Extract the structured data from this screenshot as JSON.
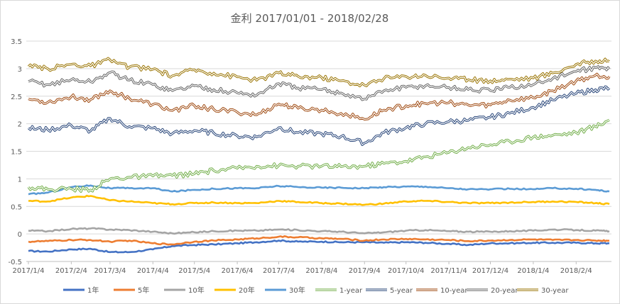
{
  "chart_data": {
    "type": "line",
    "title": "金利 2017/01/01 - 2018/02/28",
    "xlabel": "",
    "ylabel": "",
    "ylim": [
      -0.5,
      3.5
    ],
    "yticks": [
      "-0.5",
      "0",
      "0.5",
      "1",
      "1.5",
      "2",
      "2.5",
      "3",
      "3.5"
    ],
    "xticks": [
      "2017/1/4",
      "2017/2/4",
      "2017/3/4",
      "2017/4/4",
      "2017/5/4",
      "2017/6/4",
      "2017/7/4",
      "2017/8/4",
      "2017/9/4",
      "2017/10/4",
      "2017/11/4",
      "2017/12/4",
      "2018/1/4",
      "2018/2/4"
    ],
    "x": [
      "2017/1/4",
      "2017/1/18",
      "2017/2/4",
      "2017/2/18",
      "2017/3/4",
      "2017/3/18",
      "2017/4/4",
      "2017/4/18",
      "2017/5/4",
      "2017/5/18",
      "2017/6/4",
      "2017/6/18",
      "2017/7/4",
      "2017/7/18",
      "2017/8/4",
      "2017/8/18",
      "2017/9/4",
      "2017/9/18",
      "2017/10/4",
      "2017/10/18",
      "2017/11/4",
      "2017/11/18",
      "2017/12/4",
      "2017/12/18",
      "2018/1/4",
      "2018/1/18",
      "2018/2/4",
      "2018/2/18",
      "2018/2/28"
    ],
    "grid": true,
    "legend_position": "bottom",
    "series": [
      {
        "name": "1年",
        "style": "thick",
        "color": "#4472c4",
        "values": [
          -0.31,
          -0.32,
          -0.28,
          -0.27,
          -0.33,
          -0.33,
          -0.28,
          -0.22,
          -0.2,
          -0.19,
          -0.17,
          -0.15,
          -0.12,
          -0.14,
          -0.14,
          -0.15,
          -0.15,
          -0.16,
          -0.15,
          -0.16,
          -0.18,
          -0.2,
          -0.17,
          -0.17,
          -0.16,
          -0.16,
          -0.16,
          -0.17,
          -0.17
        ]
      },
      {
        "name": "5年",
        "style": "thick",
        "color": "#ed7d31",
        "values": [
          -0.14,
          -0.13,
          -0.11,
          -0.11,
          -0.14,
          -0.12,
          -0.17,
          -0.19,
          -0.14,
          -0.12,
          -0.1,
          -0.08,
          -0.05,
          -0.06,
          -0.08,
          -0.09,
          -0.12,
          -0.1,
          -0.09,
          -0.1,
          -0.11,
          -0.13,
          -0.12,
          -0.11,
          -0.1,
          -0.11,
          -0.11,
          -0.12,
          -0.12
        ]
      },
      {
        "name": "10年",
        "style": "thick",
        "color": "#a5a5a5",
        "values": [
          0.06,
          0.05,
          0.09,
          0.1,
          0.08,
          0.07,
          0.04,
          0.01,
          0.03,
          0.05,
          0.06,
          0.06,
          0.08,
          0.07,
          0.05,
          0.04,
          0.01,
          0.03,
          0.06,
          0.07,
          0.05,
          0.04,
          0.04,
          0.05,
          0.06,
          0.08,
          0.07,
          0.06,
          0.05
        ]
      },
      {
        "name": "20年",
        "style": "thick",
        "color": "#ffc000",
        "values": [
          0.6,
          0.59,
          0.66,
          0.69,
          0.61,
          0.59,
          0.56,
          0.54,
          0.56,
          0.57,
          0.56,
          0.56,
          0.6,
          0.58,
          0.56,
          0.55,
          0.53,
          0.55,
          0.59,
          0.6,
          0.58,
          0.56,
          0.56,
          0.57,
          0.58,
          0.59,
          0.58,
          0.56,
          0.54
        ]
      },
      {
        "name": "30年",
        "style": "thick",
        "color": "#5b9bd5",
        "values": [
          0.72,
          0.75,
          0.85,
          0.88,
          0.83,
          0.83,
          0.83,
          0.77,
          0.8,
          0.82,
          0.83,
          0.83,
          0.87,
          0.85,
          0.84,
          0.84,
          0.83,
          0.85,
          0.86,
          0.86,
          0.83,
          0.81,
          0.81,
          0.82,
          0.81,
          0.83,
          0.82,
          0.8,
          0.77
        ]
      },
      {
        "name": "1-year",
        "style": "outline",
        "color": "#70ad47",
        "values": [
          0.85,
          0.81,
          0.82,
          0.8,
          1.0,
          1.03,
          1.05,
          1.06,
          1.09,
          1.15,
          1.19,
          1.23,
          1.24,
          1.23,
          1.23,
          1.22,
          1.23,
          1.28,
          1.32,
          1.4,
          1.48,
          1.57,
          1.62,
          1.68,
          1.76,
          1.79,
          1.84,
          1.95,
          2.07
        ]
      },
      {
        "name": "5-year",
        "style": "outline",
        "color": "#264478",
        "values": [
          1.92,
          1.89,
          1.97,
          1.87,
          2.1,
          1.95,
          1.92,
          1.82,
          1.88,
          1.83,
          1.78,
          1.76,
          1.93,
          1.84,
          1.82,
          1.77,
          1.65,
          1.84,
          1.93,
          2.0,
          2.04,
          2.06,
          2.12,
          2.19,
          2.3,
          2.43,
          2.55,
          2.62,
          2.65
        ]
      },
      {
        "name": "10-year",
        "style": "outline",
        "color": "#9e480e",
        "values": [
          2.45,
          2.39,
          2.49,
          2.44,
          2.6,
          2.46,
          2.35,
          2.24,
          2.33,
          2.26,
          2.21,
          2.16,
          2.36,
          2.28,
          2.25,
          2.19,
          2.08,
          2.25,
          2.33,
          2.37,
          2.38,
          2.34,
          2.34,
          2.43,
          2.47,
          2.6,
          2.78,
          2.88,
          2.86
        ]
      },
      {
        "name": "20-year",
        "style": "outline",
        "color": "#636363",
        "values": [
          2.77,
          2.71,
          2.8,
          2.76,
          2.93,
          2.79,
          2.71,
          2.6,
          2.69,
          2.62,
          2.56,
          2.52,
          2.73,
          2.65,
          2.62,
          2.56,
          2.45,
          2.6,
          2.66,
          2.69,
          2.66,
          2.62,
          2.6,
          2.66,
          2.71,
          2.82,
          2.95,
          3.02,
          2.99
        ]
      },
      {
        "name": "30-year",
        "style": "outline",
        "color": "#997300",
        "values": [
          3.04,
          3.0,
          3.08,
          3.05,
          3.16,
          3.03,
          2.99,
          2.87,
          2.98,
          2.92,
          2.85,
          2.79,
          2.92,
          2.86,
          2.84,
          2.78,
          2.7,
          2.82,
          2.86,
          2.88,
          2.83,
          2.8,
          2.78,
          2.81,
          2.83,
          2.92,
          3.08,
          3.14,
          3.13
        ]
      }
    ]
  }
}
